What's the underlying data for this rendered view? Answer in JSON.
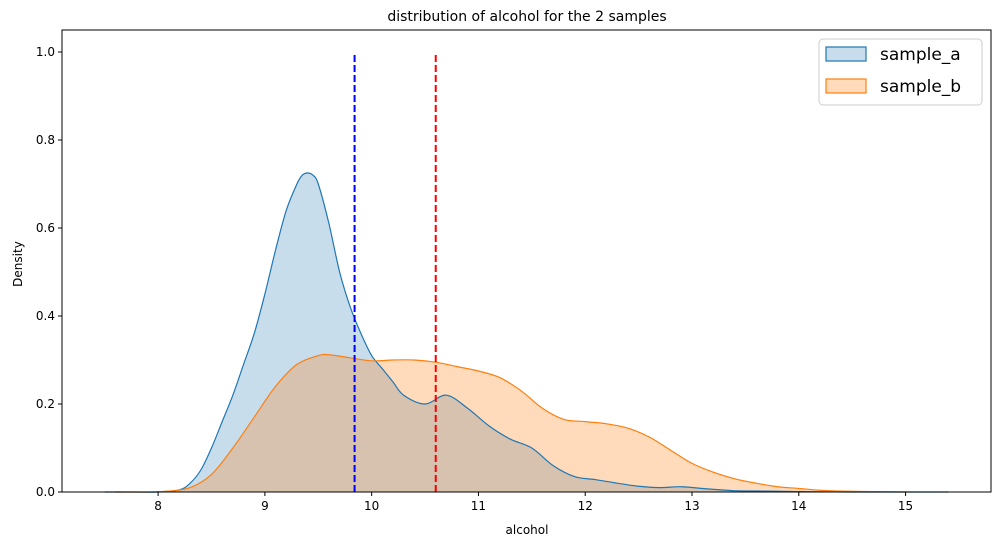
{
  "chart_data": {
    "type": "area",
    "title": "distribution of alcohol for the 2 samples",
    "xlabel": "alcohol",
    "ylabel": "Density",
    "xlim": [
      7.1,
      15.8
    ],
    "ylim": [
      0.0,
      1.05
    ],
    "xticks": [
      8,
      9,
      10,
      11,
      12,
      13,
      14,
      15
    ],
    "yticks": [
      0.0,
      0.2,
      0.4,
      0.6,
      0.8,
      1.0
    ],
    "xtick_labels": [
      "8",
      "9",
      "10",
      "11",
      "12",
      "13",
      "14",
      "15"
    ],
    "ytick_labels": [
      "0.0",
      "0.2",
      "0.4",
      "0.6",
      "0.8",
      "1.0"
    ],
    "grid": false,
    "legend_position": "top-right",
    "series": [
      {
        "name": "sample_a",
        "color": "#1f77b4",
        "fill": "#1f77b4",
        "fill_opacity": 0.25,
        "x": [
          7.5,
          7.8,
          8.0,
          8.2,
          8.3,
          8.4,
          8.5,
          8.6,
          8.7,
          8.8,
          8.9,
          9.0,
          9.1,
          9.2,
          9.3,
          9.35,
          9.4,
          9.45,
          9.5,
          9.6,
          9.7,
          9.8,
          9.9,
          10.0,
          10.1,
          10.2,
          10.3,
          10.5,
          10.7,
          10.9,
          11.1,
          11.3,
          11.5,
          11.7,
          11.9,
          12.1,
          12.3,
          12.5,
          12.7,
          12.9,
          13.1,
          13.4,
          13.7,
          14.0,
          14.5,
          15.0,
          15.4
        ],
        "y": [
          0.0,
          0.0,
          0.0,
          0.005,
          0.02,
          0.05,
          0.1,
          0.16,
          0.22,
          0.29,
          0.36,
          0.45,
          0.55,
          0.64,
          0.7,
          0.72,
          0.725,
          0.72,
          0.7,
          0.61,
          0.5,
          0.42,
          0.36,
          0.31,
          0.28,
          0.25,
          0.22,
          0.2,
          0.22,
          0.19,
          0.15,
          0.12,
          0.1,
          0.06,
          0.035,
          0.028,
          0.02,
          0.013,
          0.01,
          0.012,
          0.008,
          0.003,
          0.002,
          0.001,
          0.0,
          0.0,
          0.0
        ]
      },
      {
        "name": "sample_b",
        "color": "#ff7f0e",
        "fill": "#ff7f0e",
        "fill_opacity": 0.28,
        "x": [
          7.6,
          7.9,
          8.1,
          8.3,
          8.5,
          8.7,
          8.9,
          9.1,
          9.3,
          9.5,
          9.6,
          9.8,
          10.0,
          10.2,
          10.4,
          10.6,
          10.8,
          11.0,
          11.2,
          11.4,
          11.6,
          11.8,
          12.0,
          12.2,
          12.4,
          12.6,
          12.8,
          13.0,
          13.2,
          13.4,
          13.6,
          13.8,
          14.0,
          14.2,
          14.4,
          14.7,
          15.0
        ],
        "y": [
          0.0,
          0.0,
          0.002,
          0.01,
          0.04,
          0.1,
          0.17,
          0.24,
          0.29,
          0.31,
          0.312,
          0.305,
          0.298,
          0.3,
          0.3,
          0.295,
          0.285,
          0.275,
          0.26,
          0.23,
          0.19,
          0.165,
          0.16,
          0.155,
          0.145,
          0.125,
          0.095,
          0.065,
          0.045,
          0.03,
          0.02,
          0.012,
          0.008,
          0.004,
          0.002,
          0.001,
          0.0
        ]
      }
    ],
    "reference_lines": [
      {
        "x": 9.84,
        "y_from": 0.0,
        "y_to": 1.0,
        "color": "#0000ff",
        "style": "dashed"
      },
      {
        "x": 10.6,
        "y_from": 0.0,
        "y_to": 1.0,
        "color": "#ff0000",
        "style": "dashed"
      }
    ]
  }
}
